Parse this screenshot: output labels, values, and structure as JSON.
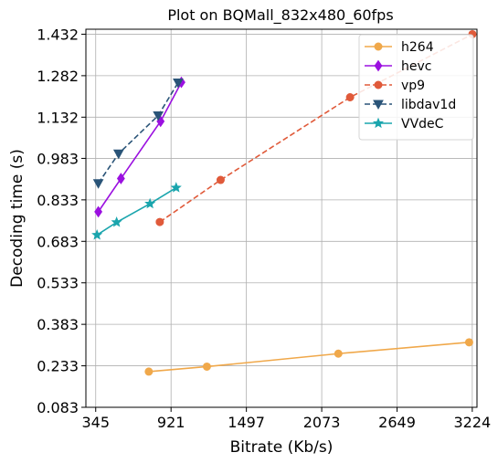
{
  "chart_data": {
    "type": "line",
    "title": "Plot on BQMall_832x480_60fps",
    "xlabel": "Bitrate (Kb/s)",
    "ylabel": "Decoding time (s)",
    "xlim": [
      270,
      3260
    ],
    "ylim": [
      0.083,
      1.45
    ],
    "xticks": [
      345,
      921,
      1497,
      2073,
      2649,
      3224
    ],
    "yticks": [
      0.083,
      0.233,
      0.383,
      0.533,
      0.683,
      0.833,
      0.983,
      1.132,
      1.282,
      1.432
    ],
    "xtick_labels": [
      "345",
      "921",
      "1497",
      "2073",
      "2649",
      "3224"
    ],
    "ytick_labels": [
      "0.083",
      "0.233",
      "0.383",
      "0.533",
      "0.683",
      "0.833",
      "0.983",
      "1.132",
      "1.282",
      "1.432"
    ],
    "grid": true,
    "legend_position": "top-right",
    "series": [
      {
        "name": "h264",
        "color": "#f0a84a",
        "dash": false,
        "marker": "circle",
        "x": [
          751,
          1195,
          2200,
          3200
        ],
        "y": [
          0.212,
          0.23,
          0.277,
          0.318
        ]
      },
      {
        "name": "hevc",
        "color": "#9b10e0",
        "dash": false,
        "marker": "diamond",
        "x": [
          365,
          538,
          841,
          1000
        ],
        "y": [
          0.79,
          0.91,
          1.117,
          1.258
        ]
      },
      {
        "name": "vp9",
        "color": "#e05a3a",
        "dash": true,
        "marker": "circle",
        "x": [
          835,
          1300,
          2290,
          3225
        ],
        "y": [
          0.753,
          0.905,
          1.204,
          1.432
        ]
      },
      {
        "name": "libdav1d",
        "color": "#2a5478",
        "dash": true,
        "marker": "triangle-down",
        "x": [
          365,
          520,
          823,
          975
        ],
        "y": [
          0.893,
          1.0,
          1.138,
          1.257
        ]
      },
      {
        "name": "VVdeC",
        "color": "#1aa5ad",
        "dash": false,
        "marker": "star",
        "x": [
          355,
          505,
          760,
          960
        ],
        "y": [
          0.706,
          0.752,
          0.819,
          0.877
        ]
      }
    ]
  }
}
